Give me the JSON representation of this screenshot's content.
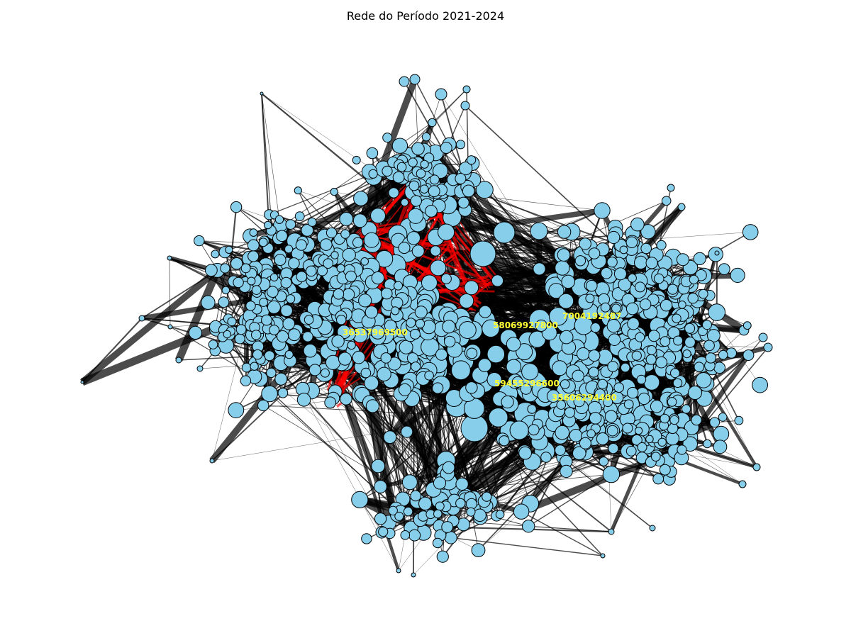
{
  "title": "Rede do Período 2021-2024",
  "colors": {
    "node_fill": "#87ceeb",
    "node_stroke": "#000000",
    "edge": "#000000",
    "highlight_edge": "#ff0000",
    "label": "#ffff33",
    "background": "#ffffff"
  },
  "hub_labels": [
    {
      "id": "hub-a",
      "text": "7004192487"
    },
    {
      "id": "hub-b",
      "text": "58069927800"
    },
    {
      "id": "hub-c",
      "text": "36537969500"
    },
    {
      "id": "hub-d",
      "text": "59455296600"
    },
    {
      "id": "hub-e",
      "text": "35606294400"
    }
  ]
}
